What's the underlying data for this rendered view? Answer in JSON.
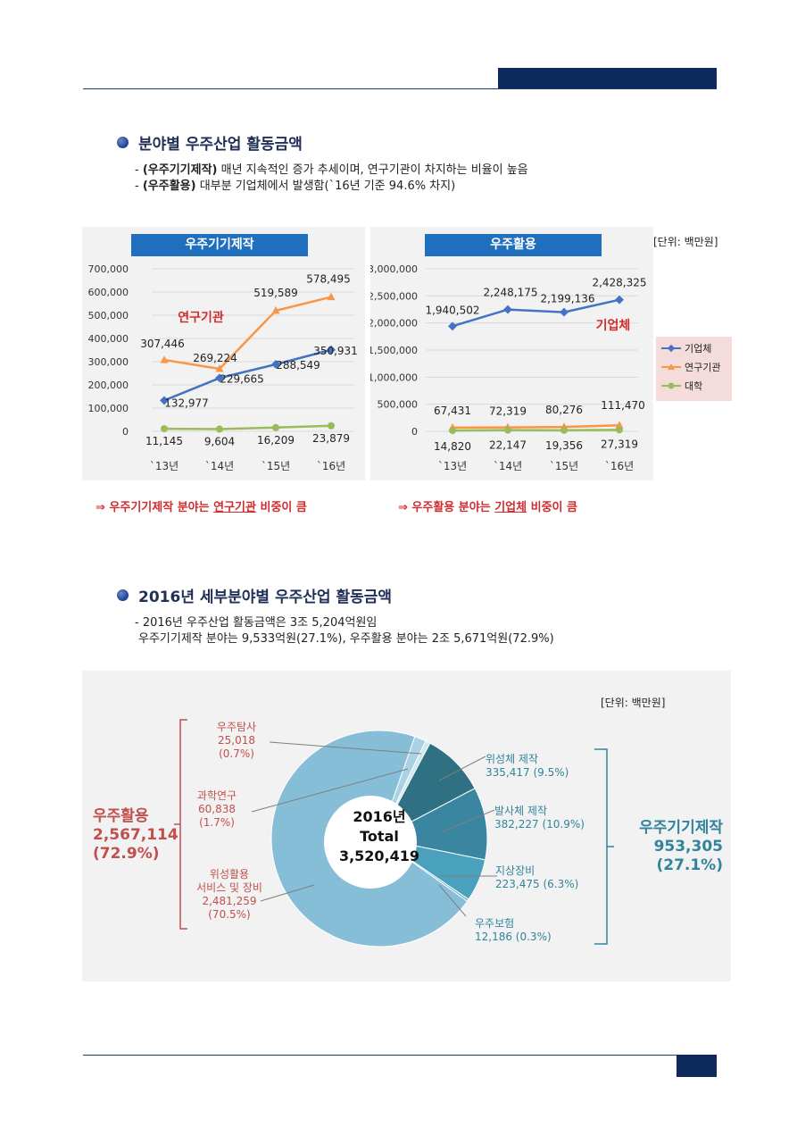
{
  "section1": {
    "title": "분야별 우주산업 활동금액",
    "line1_bold": "(우주기기제작)",
    "line1_rest": " 매년 지속적인 증가 추세이며, 연구기관이 차지하는 비율이 높음",
    "line2_bold": "(우주활용)",
    "line2_rest": " 대부분 기업체에서 발생함(`16년 기준 94.6% 차지)",
    "dash": "- ",
    "unit": "[단위: 백만원]"
  },
  "chart_left": {
    "title": "우주기기제작",
    "annotation": "연구기관",
    "y_ticks": [
      "700,000",
      "600,000",
      "500,000",
      "400,000",
      "300,000",
      "200,000",
      "100,000",
      "0"
    ],
    "conclusion_pre": "⇒ 우주기기제작 분야는 ",
    "conclusion_u": "연구기관",
    "conclusion_post": " 비중이 큼"
  },
  "chart_right": {
    "title": "우주활용",
    "annotation": "기업체",
    "y_ticks": [
      "3,000,000",
      "2,500,000",
      "2,000,000",
      "1,500,000",
      "1,000,000",
      "500,000",
      "0"
    ],
    "conclusion_pre": "⇒ 우주활용 분야는 ",
    "conclusion_u": "기업체",
    "conclusion_post": " 비중이 큼"
  },
  "legend": {
    "items": [
      "기업체",
      "연구기관",
      "대학"
    ]
  },
  "chart_data": [
    {
      "type": "line",
      "title": "우주기기제작",
      "categories": [
        "`13년",
        "`14년",
        "`15년",
        "`16년"
      ],
      "ylim": [
        0,
        700000
      ],
      "series": [
        {
          "name": "기업체",
          "values": [
            132977,
            229665,
            288549,
            350931
          ],
          "labels": [
            "132,977",
            "229,665",
            "288,549",
            "350,931"
          ],
          "color": "#4472c4"
        },
        {
          "name": "연구기관",
          "values": [
            307446,
            269224,
            519589,
            578495
          ],
          "labels": [
            "307,446",
            "269,224",
            "519,589",
            "578,495"
          ],
          "color": "#f79646"
        },
        {
          "name": "대학",
          "values": [
            11145,
            9604,
            16209,
            23879
          ],
          "labels": [
            "11,145",
            "9,604",
            "16,209",
            "23,879"
          ],
          "color": "#9bbb59"
        }
      ]
    },
    {
      "type": "line",
      "title": "우주활용",
      "categories": [
        "`13년",
        "`14년",
        "`15년",
        "`16년"
      ],
      "ylim": [
        0,
        3000000
      ],
      "series": [
        {
          "name": "기업체",
          "values": [
            1940502,
            2248175,
            2199136,
            2428325
          ],
          "labels": [
            "1,940,502",
            "2,248,175",
            "2,199,136",
            "2,428,325"
          ],
          "color": "#4472c4"
        },
        {
          "name": "연구기관",
          "values": [
            67431,
            72319,
            80276,
            111470
          ],
          "labels": [
            "67,431",
            "72,319",
            "80,276",
            "111,470"
          ],
          "color": "#f79646"
        },
        {
          "name": "대학",
          "values": [
            14820,
            22147,
            19356,
            27319
          ],
          "labels": [
            "14,820",
            "22,147",
            "19,356",
            "27,319"
          ],
          "color": "#9bbb59"
        }
      ]
    },
    {
      "type": "pie",
      "title": "2016년 Total 3,520,419",
      "slices": [
        {
          "name": "위성체 제작",
          "value": 335417,
          "pct": "9.5%",
          "color": "#2f7083"
        },
        {
          "name": "발사체 제작",
          "value": 382227,
          "pct": "10.9%",
          "color": "#3a86a0"
        },
        {
          "name": "지상장비",
          "value": 223475,
          "pct": "6.3%",
          "color": "#4aa1bd"
        },
        {
          "name": "우주보험",
          "value": 12186,
          "pct": "0.3%",
          "color": "#6ab6cf"
        },
        {
          "name": "위성활용 서비스 및 장비",
          "value": 2481259,
          "pct": "70.5%",
          "color": "#85bed6"
        },
        {
          "name": "과학연구",
          "value": 60838,
          "pct": "1.7%",
          "color": "#a9d3e4"
        },
        {
          "name": "우주탐사",
          "value": 25018,
          "pct": "0.7%",
          "color": "#cfe7f0"
        }
      ]
    }
  ],
  "section2": {
    "title": "2016년 세부분야별 우주산업 활동금액",
    "line1": "- 2016년 우주산업 활동금액은 3조 5,204억원임",
    "line2": " 우주기기제작 분야는 9,533억원(27.1%), 우주활용 분야는 2조 5,671억원(72.9%)",
    "unit": "[단위: 백만원]"
  },
  "pie_labels": {
    "center_year": "2016년",
    "center_total": "Total",
    "center_value": "3,520,419",
    "explore": {
      "name": "우주탐사",
      "value": "25,018",
      "pct": "(0.7%)"
    },
    "science": {
      "name": "과학연구",
      "value": "60,838",
      "pct": "(1.7%)"
    },
    "service": {
      "name1": "위성활용",
      "name2": "서비스 및 장비",
      "value": "2,481,259",
      "pct": "(70.5%)"
    },
    "satellite": {
      "name": "위성체 제작",
      "value_pct": "335,417  (9.5%)"
    },
    "launcher": {
      "name": "발사체 제작",
      "value_pct": "382,227  (10.9%)"
    },
    "ground": {
      "name": "지상장비",
      "value_pct": "223,475  (6.3%)"
    },
    "insurance": {
      "name": "우주보험",
      "value_pct": "12,186  (0.3%)"
    },
    "group_use": {
      "name": "우주활용",
      "value": "2,567,114",
      "pct": "(72.9%)"
    },
    "group_mfg": {
      "name": "우주기기제작",
      "value": "953,305",
      "pct": "(27.1%)"
    }
  }
}
